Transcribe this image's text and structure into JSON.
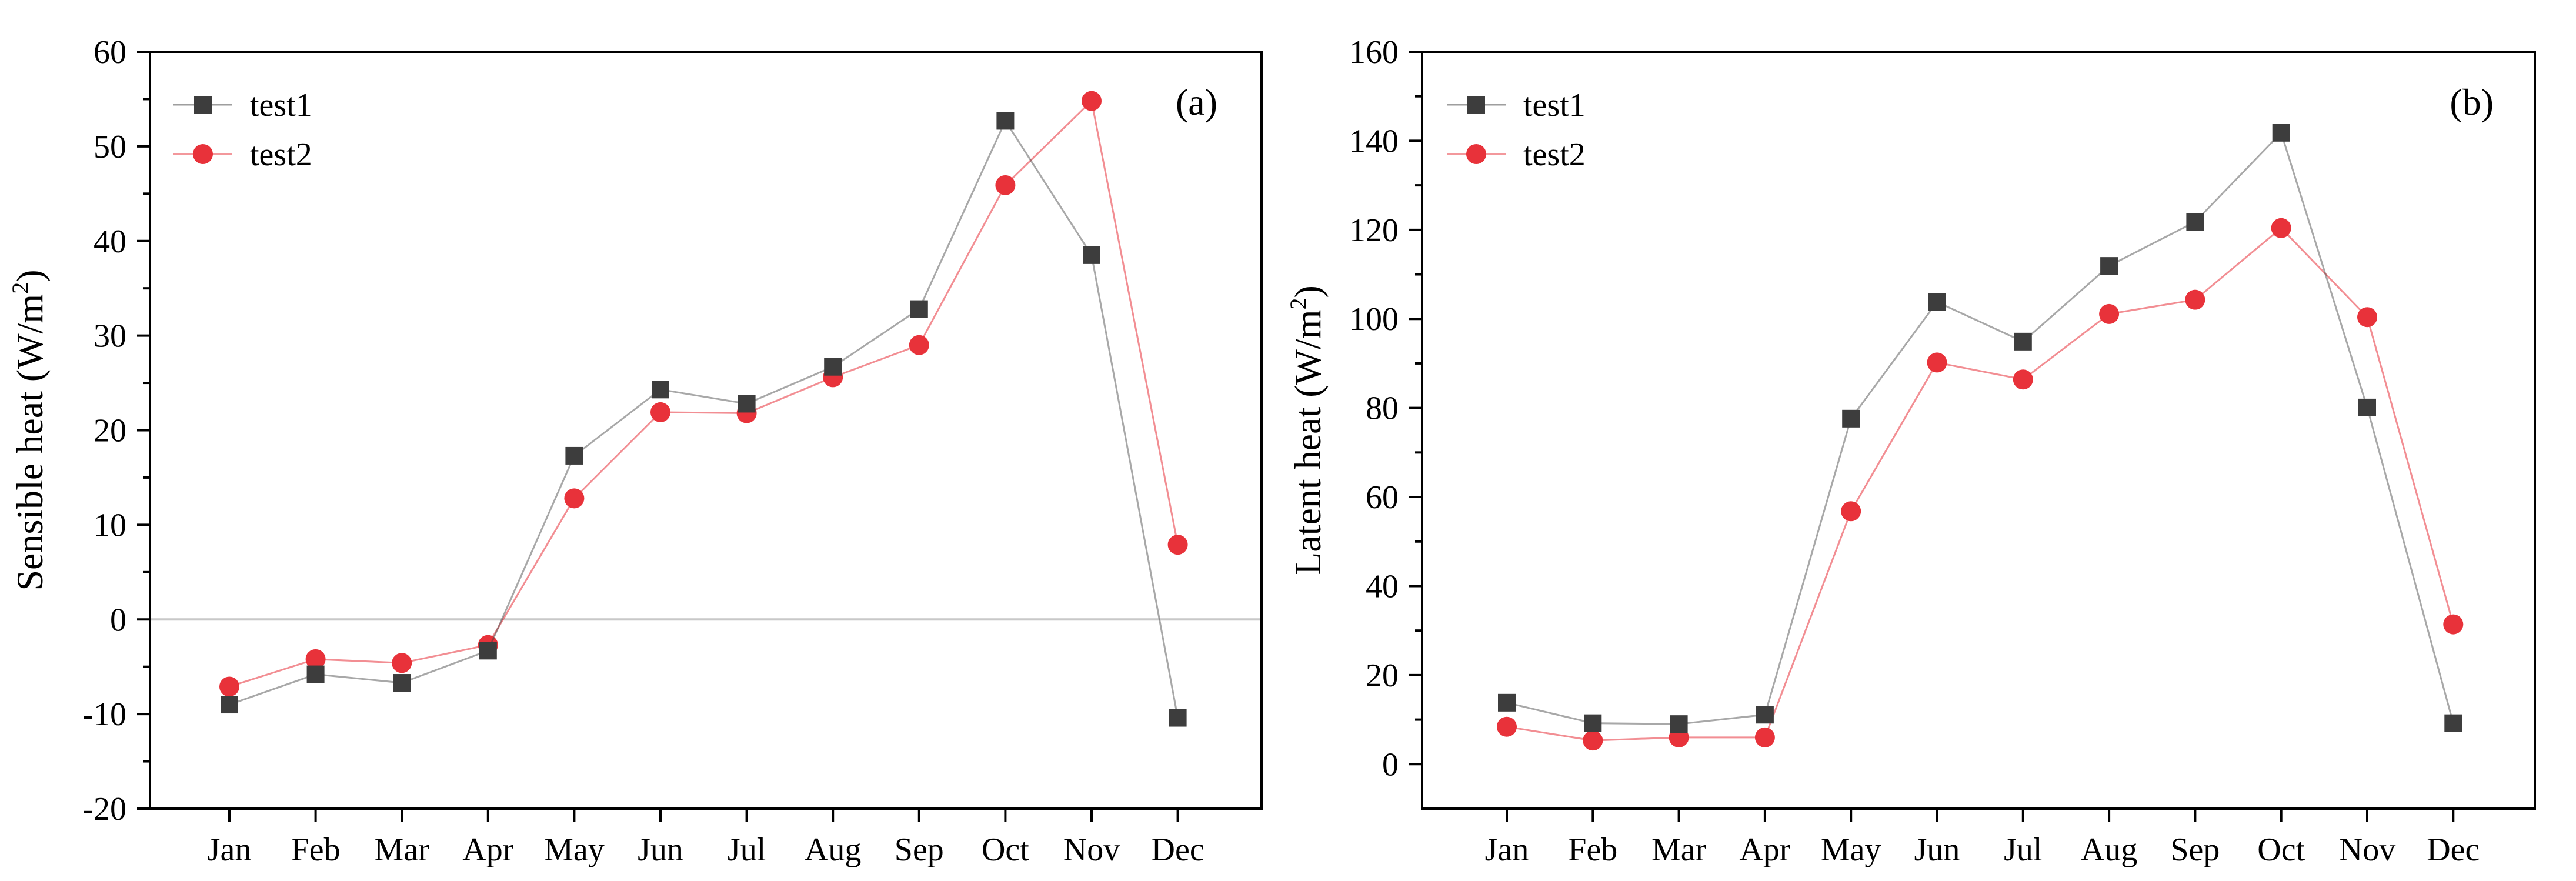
{
  "figure": {
    "colors": {
      "test1": "#3d3d3d",
      "test2": "#e8323a",
      "axis": "#000000",
      "zero_line": "#c8c8c8"
    }
  },
  "chart_data": [
    {
      "panel": "(a)",
      "type": "line",
      "categories": [
        "Jan",
        "Feb",
        "Mar",
        "Apr",
        "May",
        "Jun",
        "Jul",
        "Aug",
        "Sep",
        "Oct",
        "Nov",
        "Dec"
      ],
      "series": [
        {
          "name": "test1",
          "marker": "square",
          "values": [
            -9,
            -5.8,
            -6.7,
            -3.3,
            17.3,
            24.3,
            22.8,
            26.7,
            32.8,
            52.7,
            38.5,
            -10.4
          ]
        },
        {
          "name": "test2",
          "marker": "circle",
          "values": [
            -7.1,
            -4.2,
            -4.6,
            -2.7,
            12.8,
            21.9,
            21.8,
            25.6,
            29.0,
            45.9,
            54.8,
            7.9
          ]
        }
      ],
      "ylabel_main": "Sensible heat (W/m",
      "ylabel_sup": "2",
      "ylabel_close": ")",
      "xlabel": "",
      "ylim": [
        -20,
        60
      ],
      "yticks": [
        -20,
        -10,
        0,
        10,
        20,
        30,
        40,
        50,
        60
      ],
      "ytick_labels": [
        "-20",
        "-10",
        "0",
        "10",
        "20",
        "30",
        "40",
        "50",
        "60"
      ],
      "zero_line": true,
      "legend_position": "top-left"
    },
    {
      "panel": "(b)",
      "type": "line",
      "categories": [
        "Jan",
        "Feb",
        "Mar",
        "Apr",
        "May",
        "Jun",
        "Jul",
        "Aug",
        "Sep",
        "Oct",
        "Nov",
        "Dec"
      ],
      "series": [
        {
          "name": "test1",
          "marker": "square",
          "values": [
            13.8,
            9.2,
            9.0,
            11.1,
            77.6,
            103.8,
            94.9,
            111.9,
            121.8,
            141.8,
            80.1,
            9.2
          ]
        },
        {
          "name": "test2",
          "marker": "circle",
          "values": [
            8.4,
            5.3,
            6.0,
            6.0,
            56.8,
            90.2,
            86.4,
            101.1,
            104.3,
            120.4,
            100.4,
            31.4
          ]
        }
      ],
      "ylabel_main": "Latent heat (W/m",
      "ylabel_sup": "2",
      "ylabel_close": ")",
      "xlabel": "",
      "ylim": [
        -10,
        160
      ],
      "yticks": [
        0,
        20,
        40,
        60,
        80,
        100,
        120,
        140,
        160
      ],
      "ytick_labels": [
        "0",
        "20",
        "40",
        "60",
        "80",
        "100",
        "120",
        "140",
        "160"
      ],
      "zero_line": false,
      "legend_position": "top-left"
    }
  ]
}
